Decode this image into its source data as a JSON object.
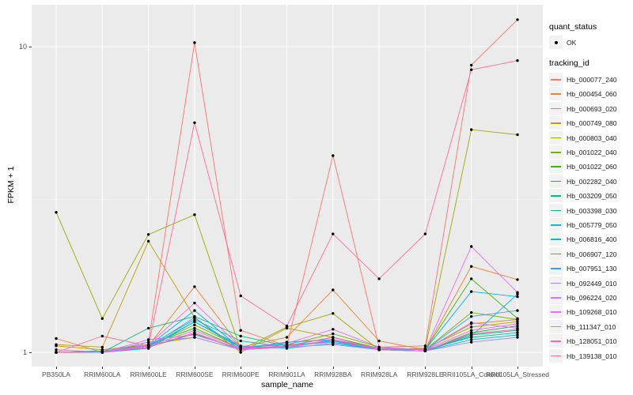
{
  "chart_data": {
    "type": "line",
    "title": "",
    "xlabel": "sample_name",
    "ylabel": "FPKM + 1",
    "y_scale": "log10",
    "ylim": [
      0.92,
      13.7
    ],
    "grid": "on",
    "panel_bg": "#EBEBEB",
    "grid_color": "#FFFFFF",
    "point_color": "#000000",
    "y_ticks": [
      {
        "value": 1,
        "label": "1"
      },
      {
        "value": 10,
        "label": "10"
      }
    ],
    "y_minor_ticks": [
      3.162
    ],
    "x_categories": [
      "PB350LA",
      "RRIM600LA",
      "RRIM600LE",
      "RRIM600SE",
      "RRIM600PE",
      "RRIM901LA",
      "RRIM928BA",
      "RRIM928LA",
      "RRIM928LE",
      "RRII105LA_Control",
      "RRII105LA_Stressed"
    ],
    "legend": {
      "position": "right",
      "quant_status_title": "quant_status",
      "quant_status_items": [
        {
          "label": "OK",
          "symbol": "point"
        }
      ],
      "tracking_title": "tracking_id"
    },
    "series": [
      {
        "name": "Hb_000077_240",
        "color": "#F8766D",
        "values": [
          1.02,
          1.0,
          1.08,
          10.3,
          1.18,
          1.05,
          4.4,
          1.04,
          1.05,
          8.7,
          12.25
        ]
      },
      {
        "name": "Hb_000454_060",
        "color": "#EA8331",
        "values": [
          1.11,
          1.0,
          1.05,
          1.64,
          1.04,
          1.12,
          1.6,
          1.09,
          1.02,
          1.91,
          1.73
        ]
      },
      {
        "name": "Hb_000693_020",
        "color": "#D89000",
        "values": [
          1.05,
          1.02,
          1.06,
          1.12,
          1.02,
          1.08,
          1.1,
          1.03,
          1.02,
          1.24,
          1.28
        ]
      },
      {
        "name": "Hb_000749_080",
        "color": "#C09B00",
        "values": [
          1.06,
          1.04,
          2.31,
          1.3,
          1.0,
          1.2,
          1.12,
          1.02,
          1.03,
          1.21,
          1.26
        ]
      },
      {
        "name": "Hb_000803_040",
        "color": "#A3A500",
        "values": [
          2.87,
          1.29,
          2.43,
          2.82,
          1.02,
          1.21,
          1.34,
          1.02,
          1.03,
          5.35,
          5.15
        ]
      },
      {
        "name": "Hb_001022_040",
        "color": "#7CAE00",
        "values": [
          1.0,
          1.0,
          1.05,
          1.23,
          1.04,
          1.06,
          1.15,
          1.04,
          1.02,
          1.35,
          1.28
        ]
      },
      {
        "name": "Hb_001022_060",
        "color": "#39B600",
        "values": [
          1.0,
          1.01,
          1.06,
          1.2,
          1.03,
          1.05,
          1.12,
          1.03,
          1.02,
          1.74,
          1.29
        ]
      },
      {
        "name": "Hb_002282_040",
        "color": "#00BB4E",
        "values": [
          1.0,
          1.0,
          1.04,
          1.15,
          1.02,
          1.04,
          1.1,
          1.02,
          1.01,
          1.16,
          1.22
        ]
      },
      {
        "name": "Hb_003209_050",
        "color": "#00BF7D",
        "values": [
          1.0,
          1.0,
          1.2,
          1.31,
          1.13,
          1.05,
          1.08,
          1.02,
          1.01,
          1.14,
          1.18
        ]
      },
      {
        "name": "Hb_003398_030",
        "color": "#00C1A3",
        "values": [
          1.0,
          1.0,
          1.05,
          1.28,
          1.09,
          1.04,
          1.09,
          1.03,
          1.02,
          1.12,
          1.16
        ]
      },
      {
        "name": "Hb_005779_050",
        "color": "#00BFC4",
        "values": [
          1.0,
          1.0,
          1.03,
          1.26,
          1.05,
          1.03,
          1.07,
          1.02,
          1.01,
          1.1,
          1.14
        ]
      },
      {
        "name": "Hb_006816_400",
        "color": "#00BAE0",
        "values": [
          1.0,
          1.0,
          1.04,
          1.26,
          1.04,
          1.06,
          1.08,
          1.02,
          1.01,
          1.13,
          1.55
        ]
      },
      {
        "name": "Hb_006907_120",
        "color": "#00B0F6",
        "values": [
          1.0,
          1.01,
          1.05,
          1.37,
          1.03,
          1.08,
          1.1,
          1.03,
          1.02,
          1.58,
          1.52
        ]
      },
      {
        "name": "Hb_007951_130",
        "color": "#35A2FF",
        "values": [
          1.0,
          1.0,
          1.04,
          1.3,
          1.02,
          1.05,
          1.09,
          1.02,
          1.02,
          1.31,
          1.37
        ]
      },
      {
        "name": "Hb_092449_010",
        "color": "#9590FF",
        "values": [
          1.0,
          1.0,
          1.08,
          1.12,
          1.02,
          1.04,
          1.06,
          1.02,
          1.01,
          1.08,
          1.12
        ]
      },
      {
        "name": "Hb_096224_020",
        "color": "#C77CFF",
        "values": [
          1.0,
          1.0,
          1.1,
          1.14,
          1.03,
          1.05,
          1.08,
          1.03,
          1.02,
          1.25,
          1.2
        ]
      },
      {
        "name": "Hb_109268_010",
        "color": "#E76BF3",
        "values": [
          1.0,
          1.0,
          1.06,
          1.45,
          1.04,
          1.07,
          1.19,
          1.04,
          1.02,
          2.22,
          1.57
        ]
      },
      {
        "name": "Hb_111347_010",
        "color": "#FA62DB",
        "values": [
          1.0,
          1.0,
          1.05,
          1.18,
          1.03,
          1.04,
          1.1,
          1.03,
          1.02,
          1.18,
          1.24
        ]
      },
      {
        "name": "Hb_128051_010",
        "color": "#FF62BC",
        "values": [
          1.0,
          1.0,
          1.04,
          1.16,
          1.02,
          1.05,
          1.12,
          1.02,
          1.01,
          1.15,
          1.19
        ]
      },
      {
        "name": "Hb_139138_010",
        "color": "#FF6A98",
        "values": [
          1.0,
          1.13,
          1.05,
          5.64,
          1.53,
          1.22,
          2.44,
          1.74,
          2.44,
          8.4,
          9.0
        ]
      }
    ]
  }
}
